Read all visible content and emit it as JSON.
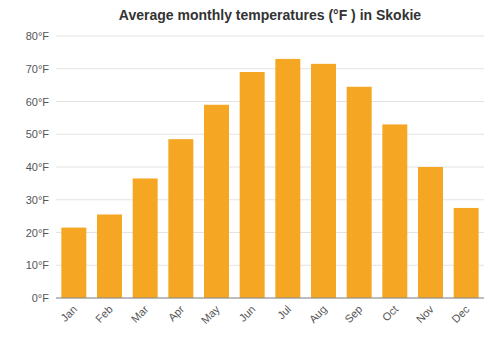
{
  "chart_data": {
    "type": "bar",
    "title": "Average monthly temperatures (°F ) in Skokie",
    "categories": [
      "Jan",
      "Feb",
      "Mar",
      "Apr",
      "May",
      "Jun",
      "Jul",
      "Aug",
      "Sep",
      "Oct",
      "Nov",
      "Dec"
    ],
    "values": [
      21.5,
      25.5,
      36.5,
      48.5,
      59.0,
      69.0,
      73.0,
      71.5,
      64.5,
      53.0,
      40.0,
      27.5
    ],
    "color": "#F5A623",
    "ylim": [
      0,
      80
    ],
    "yticks": [
      {
        "value": 0,
        "label": "0°F"
      },
      {
        "value": 10,
        "label": "10°F"
      },
      {
        "value": 20,
        "label": "20°F"
      },
      {
        "value": 30,
        "label": "30°F"
      },
      {
        "value": 40,
        "label": "40°F"
      },
      {
        "value": 50,
        "label": "50°F"
      },
      {
        "value": 60,
        "label": "60°F"
      },
      {
        "value": 70,
        "label": "70°F"
      },
      {
        "value": 80,
        "label": "80°F"
      }
    ],
    "grid": true
  }
}
